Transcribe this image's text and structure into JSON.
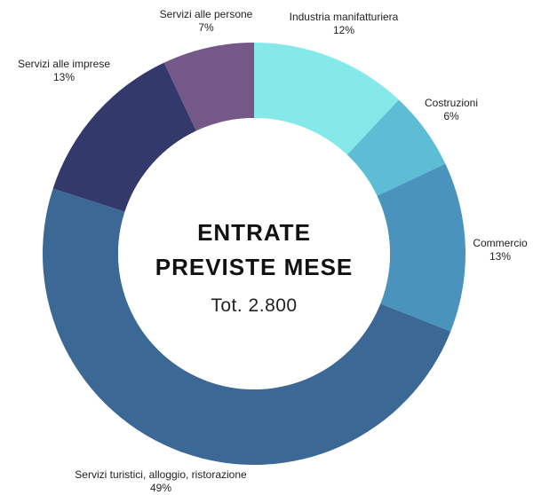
{
  "chart_data": {
    "type": "pie",
    "title_lines": [
      "ENTRATE",
      "PREVISTE MESE"
    ],
    "total_label": "Tot.  2.800",
    "slices": [
      {
        "name": "Industria manifatturiera",
        "pct_label": "12%",
        "value": 12,
        "color": "#86E9E9"
      },
      {
        "name": "Costruzioni",
        "pct_label": "6%",
        "value": 6,
        "color": "#5DBDD5"
      },
      {
        "name": "Commercio",
        "pct_label": "13%",
        "value": 13,
        "color": "#4A93BD"
      },
      {
        "name": "Servizi turistici, alloggio, ristorazione",
        "pct_label": "49%",
        "value": 49,
        "color": "#3C6896"
      },
      {
        "name": "Servizi alle imprese",
        "pct_label": "13%",
        "value": 13,
        "color": "#33396B"
      },
      {
        "name": "Servizi alle persone",
        "pct_label": "7%",
        "value": 7,
        "color": "#735888"
      }
    ]
  }
}
